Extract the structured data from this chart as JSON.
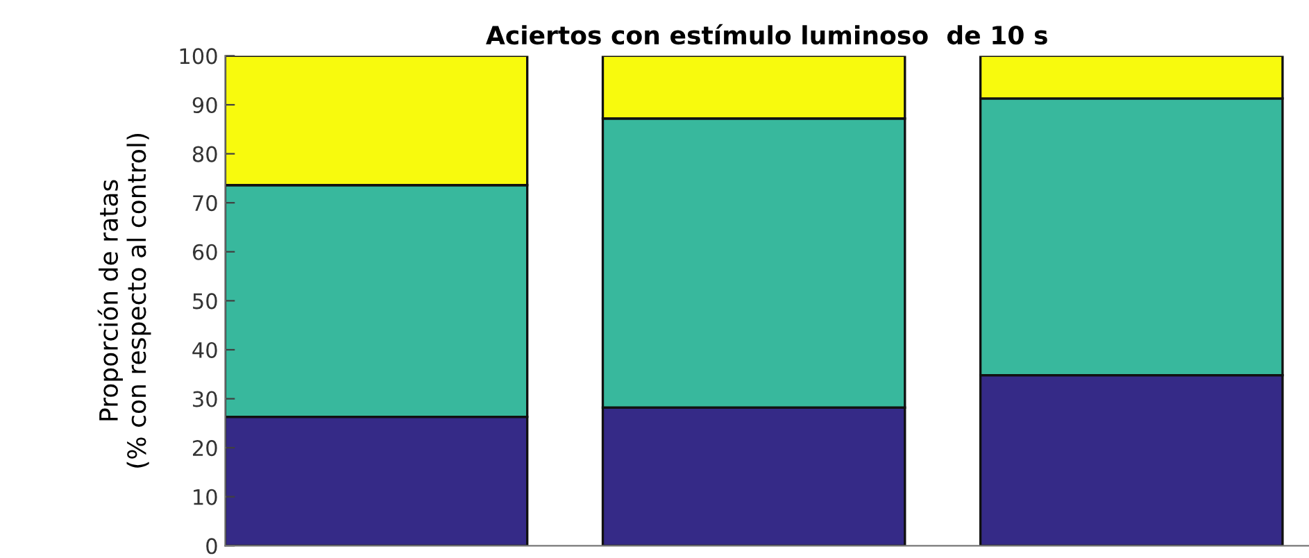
{
  "chart_data": {
    "type": "bar",
    "title": "Aciertos con estímulo luminoso  de 10 s",
    "ylabel": "Proporción de ratas\n(% con respecto al control)",
    "categories": [
      null,
      null,
      null
    ],
    "stacked": true,
    "series": [
      {
        "color": "#352a87",
        "values": [
          26.3,
          28.2,
          34.8
        ]
      },
      {
        "color": "#38b89d",
        "values": [
          47.3,
          59.0,
          56.5
        ]
      },
      {
        "color": "#f8fa0d",
        "values": [
          26.4,
          12.8,
          8.7
        ]
      }
    ],
    "ylim": [
      0,
      100
    ],
    "yticks": [
      0,
      10,
      20,
      30,
      40,
      50,
      60,
      70,
      80,
      90,
      100
    ],
    "grid": false
  }
}
